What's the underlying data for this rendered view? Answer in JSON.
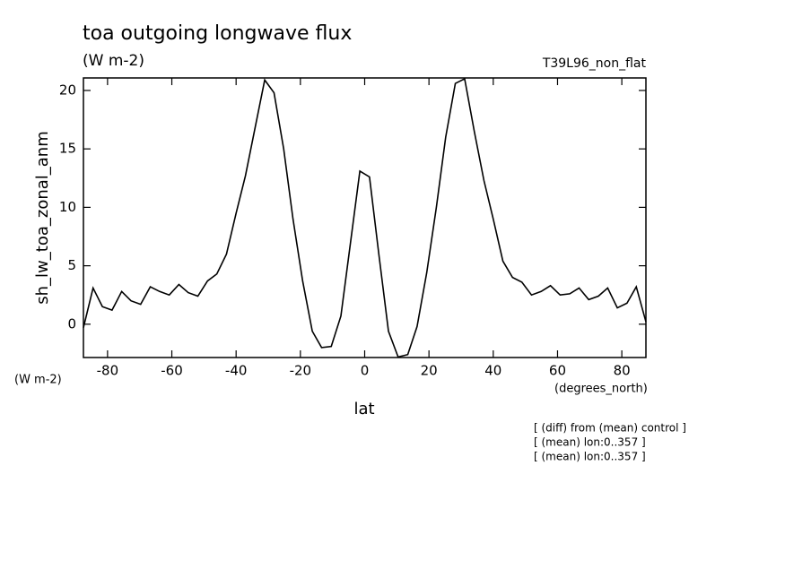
{
  "chart_data": {
    "type": "line",
    "title": "toa outgoing longwave flux",
    "subtitle": "(W m-2)",
    "experiment": "T39L96_non_flat",
    "y_label": "sh_lw_toa_zonal_anm",
    "y_units": "(W m-2)",
    "x_label": "lat",
    "x_units": "(degrees_north)",
    "annotations": [
      "[ (diff) from (mean) control ]",
      "[ (mean) lon:0..357 ]",
      "[ (mean) lon:0..357 ]"
    ],
    "x": [
      -87.5,
      -84.5,
      -81.6,
      -78.6,
      -75.6,
      -72.7,
      -69.7,
      -66.7,
      -63.8,
      -60.8,
      -57.8,
      -54.9,
      -51.9,
      -48.9,
      -46.0,
      -43.0,
      -40.0,
      -37.1,
      -34.1,
      -31.1,
      -28.2,
      -25.2,
      -22.3,
      -19.3,
      -16.3,
      -13.4,
      -10.4,
      -7.4,
      -4.4,
      -1.5,
      1.5,
      4.4,
      7.4,
      10.4,
      13.4,
      16.3,
      19.3,
      22.3,
      25.2,
      28.2,
      31.1,
      34.1,
      37.1,
      40.0,
      43.0,
      46.0,
      48.9,
      51.9,
      54.9,
      57.8,
      60.8,
      63.8,
      66.7,
      69.7,
      72.7,
      75.6,
      78.6,
      81.6,
      84.5,
      87.5
    ],
    "series": [
      {
        "name": "sh_lw_toa_zonal_anm",
        "color": "#000000",
        "values": [
          -0.3,
          3.1,
          1.5,
          1.2,
          2.8,
          2.0,
          1.7,
          3.2,
          2.8,
          2.5,
          3.4,
          2.7,
          2.4,
          3.7,
          4.3,
          6.0,
          9.5,
          12.7,
          16.8,
          20.9,
          19.8,
          15.0,
          9.0,
          3.7,
          -0.6,
          -2.0,
          -1.9,
          0.7,
          7.0,
          13.1,
          12.6,
          6.0,
          -0.6,
          -2.8,
          -2.6,
          -0.2,
          4.4,
          10.0,
          16.0,
          20.6,
          21.0,
          16.5,
          12.3,
          9.0,
          5.4,
          4.0,
          3.6,
          2.5,
          2.8,
          3.3,
          2.5,
          2.6,
          3.1,
          2.1,
          2.4,
          3.1,
          1.4,
          1.8,
          3.2,
          0.2
        ]
      }
    ],
    "xlim": [
      -87.5,
      87.5
    ],
    "ylim": [
      -2.85,
      21.07
    ],
    "xticks": [
      -80,
      -60,
      -40,
      -20,
      0,
      20,
      40,
      60,
      80
    ],
    "yticks": [
      0,
      5,
      10,
      15,
      20
    ],
    "grid": false
  }
}
